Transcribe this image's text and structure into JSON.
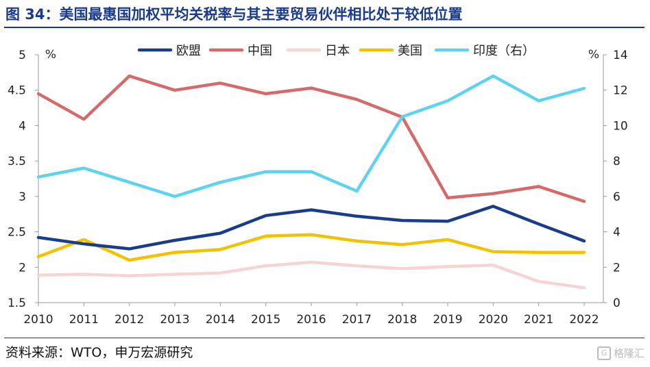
{
  "header": {
    "title": "图 34：美国最惠国加权平均关税率与其主要贸易伙伴相比处于较低位置"
  },
  "footer": {
    "source": "资料来源：WTO，申万宏源研究",
    "watermark": "格隆汇"
  },
  "chart_data": {
    "type": "line",
    "title": "图 34：美国最惠国加权平均关税率与其主要贸易伙伴相比处于较低位置",
    "x": [
      2010,
      2011,
      2012,
      2013,
      2014,
      2015,
      2016,
      2017,
      2018,
      2019,
      2020,
      2021,
      2022
    ],
    "x_tick_labels": [
      "2010",
      "2011",
      "2012",
      "2013",
      "2014",
      "2015",
      "2016",
      "2017",
      "2018",
      "2019",
      "2020",
      "2021",
      "2022"
    ],
    "y_left": {
      "label": "%",
      "range": [
        1.5,
        5
      ],
      "ticks": [
        1.5,
        2,
        2.5,
        3,
        3.5,
        4,
        4.5,
        5
      ],
      "tick_labels": [
        "1.5",
        "2",
        "2.5",
        "3",
        "3.5",
        "4",
        "4.5",
        "5"
      ]
    },
    "y_right": {
      "label": "%",
      "range": [
        0,
        14
      ],
      "ticks": [
        0,
        2,
        4,
        6,
        8,
        10,
        12,
        14
      ],
      "tick_labels": [
        "0",
        "2",
        "4",
        "6",
        "8",
        "10",
        "12",
        "14"
      ]
    },
    "grid": false,
    "legend_position": "top",
    "series": [
      {
        "name": "欧盟",
        "axis": "left",
        "color": "#1a3c8c",
        "values": [
          2.42,
          2.33,
          2.26,
          2.38,
          2.48,
          2.73,
          2.81,
          2.72,
          2.66,
          2.65,
          2.86,
          2.61,
          2.37
        ]
      },
      {
        "name": "中国",
        "axis": "left",
        "color": "#d46a6a",
        "values": [
          4.45,
          4.09,
          4.7,
          4.5,
          4.6,
          4.45,
          4.53,
          4.37,
          4.12,
          2.98,
          3.04,
          3.14,
          2.93
        ]
      },
      {
        "name": "日本",
        "axis": "left",
        "color": "#f6d4d4",
        "values": [
          1.89,
          1.9,
          1.88,
          1.9,
          1.92,
          2.02,
          2.07,
          2.02,
          1.98,
          2.01,
          2.03,
          1.8,
          1.71
        ]
      },
      {
        "name": "美国",
        "axis": "left",
        "color": "#f2c200",
        "values": [
          2.15,
          2.39,
          2.1,
          2.21,
          2.25,
          2.44,
          2.46,
          2.37,
          2.32,
          2.39,
          2.22,
          2.21,
          2.21
        ]
      },
      {
        "name": "印度（右）",
        "axis": "right",
        "color": "#5dd3f0",
        "values": [
          7.1,
          7.6,
          6.8,
          6.0,
          6.8,
          7.4,
          7.4,
          6.3,
          10.5,
          11.4,
          12.8,
          11.4,
          12.1
        ]
      }
    ]
  }
}
